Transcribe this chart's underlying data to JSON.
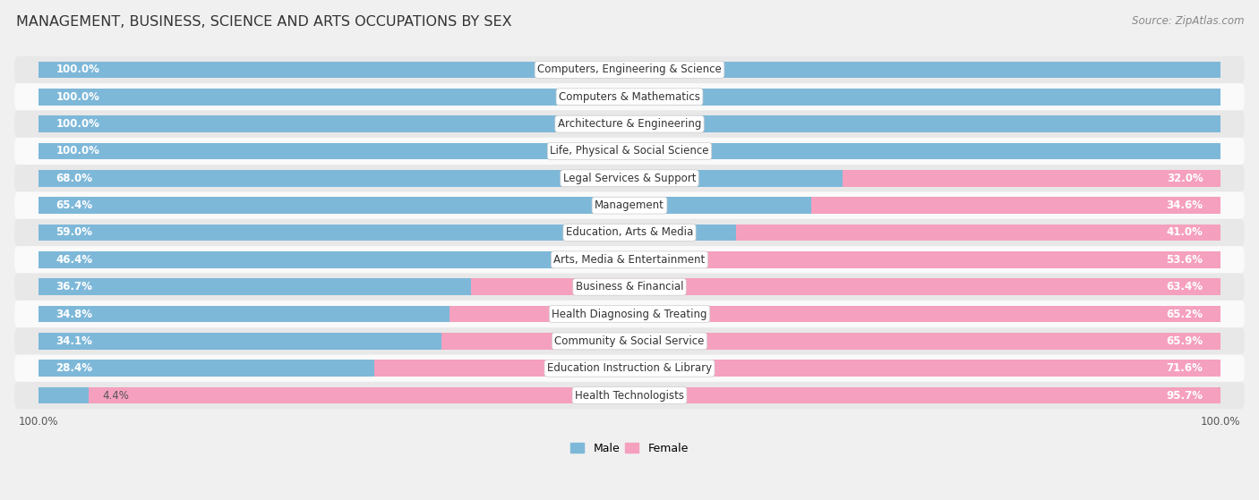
{
  "title": "MANAGEMENT, BUSINESS, SCIENCE AND ARTS OCCUPATIONS BY SEX",
  "source": "Source: ZipAtlas.com",
  "categories": [
    "Computers, Engineering & Science",
    "Computers & Mathematics",
    "Architecture & Engineering",
    "Life, Physical & Social Science",
    "Legal Services & Support",
    "Management",
    "Education, Arts & Media",
    "Arts, Media & Entertainment",
    "Business & Financial",
    "Health Diagnosing & Treating",
    "Community & Social Service",
    "Education Instruction & Library",
    "Health Technologists"
  ],
  "male": [
    100.0,
    100.0,
    100.0,
    100.0,
    68.0,
    65.4,
    59.0,
    46.4,
    36.7,
    34.8,
    34.1,
    28.4,
    4.4
  ],
  "female": [
    0.0,
    0.0,
    0.0,
    0.0,
    32.0,
    34.6,
    41.0,
    53.6,
    63.4,
    65.2,
    65.9,
    71.6,
    95.7
  ],
  "male_color": "#7eb8d9",
  "female_color": "#f5a0be",
  "bg_color": "#f0f0f0",
  "row_colors": [
    "#e8e8e8",
    "#fafafa"
  ],
  "title_fontsize": 11.5,
  "bar_label_fontsize": 8.5,
  "cat_label_fontsize": 8.5,
  "source_fontsize": 8.5,
  "legend_fontsize": 9,
  "x_axis_label_left": "100.0%",
  "x_axis_label_right": "100.0%"
}
